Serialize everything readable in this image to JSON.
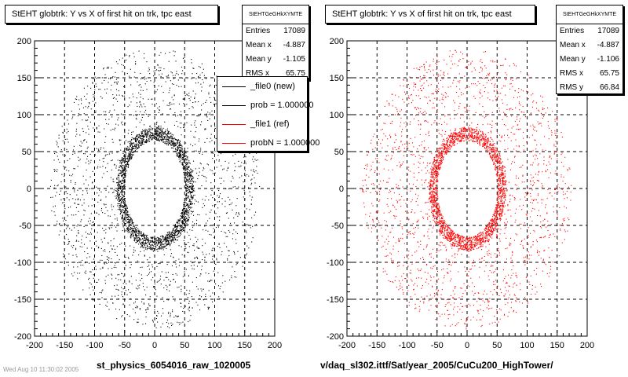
{
  "chart_data": [
    {
      "type": "scatter",
      "title": "StEHT globtrk: Y vs X of first hit on trk, tpc east",
      "xlabel": "st_physics_6054016_raw_1020005",
      "ylabel": "",
      "xlim": [
        -200,
        200
      ],
      "ylim": [
        -200,
        200
      ],
      "x_ticks": [
        "-200",
        "-150",
        "-100",
        "-50",
        "0",
        "50",
        "100",
        "150",
        "200"
      ],
      "y_ticks": [
        "-200",
        "-150",
        "-100",
        "-50",
        "0",
        "50",
        "100",
        "150",
        "200"
      ],
      "grid": true,
      "marker_color": "#000000",
      "distribution": {
        "hole_x": [
          -50,
          50
        ],
        "hole_y": [
          -65,
          65
        ],
        "dense_ring_outer": 75,
        "sparse_extent_x": [
          -175,
          175
        ],
        "sparse_extent_y": [
          -190,
          190
        ]
      },
      "stats": {
        "name": "StEHTGeGHkXYMTE",
        "rows": [
          {
            "label": "Entries",
            "value": "17089"
          },
          {
            "label": "Mean x",
            "value": "-4.887"
          },
          {
            "label": "Mean y",
            "value": "-1.105"
          },
          {
            "label": "RMS x",
            "value": "65.75"
          }
        ]
      },
      "legend": [
        {
          "label": "_file0 (new)",
          "color": "#000000"
        },
        {
          "label": "prob = 1.000000",
          "color": "#000000"
        },
        {
          "label": "_file1 (ref)",
          "color": "#ff0000"
        },
        {
          "label": "probN = 1.000000",
          "color": "#ff0000"
        }
      ]
    },
    {
      "type": "scatter",
      "title": "StEHT globtrk: Y vs X of first hit on trk, tpc east",
      "xlabel": "v/daq_sl302.ittf/Sat/year_2005/CuCu200_HighTower/",
      "ylabel": "",
      "xlim": [
        -200,
        200
      ],
      "ylim": [
        -200,
        200
      ],
      "x_ticks": [
        "-200",
        "-150",
        "-100",
        "-50",
        "0",
        "50",
        "100",
        "150",
        "200"
      ],
      "y_ticks": [
        "-200",
        "-150",
        "-100",
        "-50",
        "0",
        "50",
        "100",
        "150",
        "200"
      ],
      "grid": true,
      "marker_color": "#ff0000",
      "distribution": {
        "hole_x": [
          -50,
          50
        ],
        "hole_y": [
          -65,
          65
        ],
        "dense_ring_outer": 75,
        "sparse_extent_x": [
          -175,
          175
        ],
        "sparse_extent_y": [
          -190,
          190
        ]
      },
      "stats": {
        "name": "StEHTGeGHkXYMTE",
        "rows": [
          {
            "label": "Entries",
            "value": "17089"
          },
          {
            "label": "Mean x",
            "value": "-4.887"
          },
          {
            "label": "Mean y",
            "value": "-1.106"
          },
          {
            "label": "RMS x",
            "value": "65.75"
          },
          {
            "label": "RMS y",
            "value": "66.84"
          }
        ]
      }
    }
  ],
  "footer_note": "Wed Aug 10 11:30:02 2005"
}
